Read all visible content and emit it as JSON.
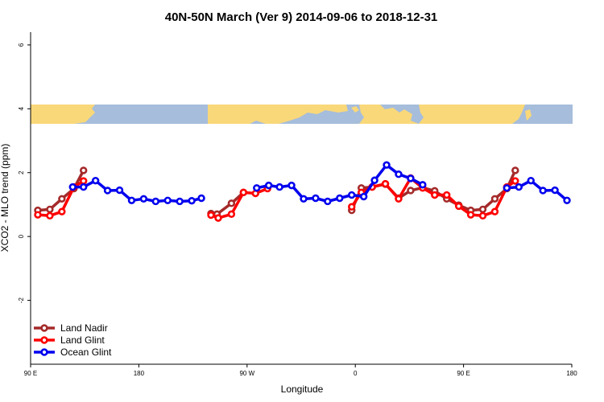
{
  "chart_data": {
    "type": "line",
    "title": "40N-50N March (Ver 9)   2014-09-06 to 2018-12-31",
    "xlabel": "Longitude",
    "ylabel": "XCO2 - MLO trend (ppm)",
    "xlim": [
      -90,
      360
    ],
    "ylim": [
      -4,
      6.4
    ],
    "xticks": [
      {
        "value": -90,
        "label": "90 E"
      },
      {
        "value": 0,
        "label": "180"
      },
      {
        "value": 90,
        "label": "90 W"
      },
      {
        "value": 180,
        "label": "0"
      },
      {
        "value": 270,
        "label": "90 E"
      },
      {
        "value": 360,
        "label": "180"
      }
    ],
    "yticks": [
      {
        "value": -2,
        "label": "-2"
      },
      {
        "value": 0,
        "label": "0"
      },
      {
        "value": 2,
        "label": "2"
      },
      {
        "value": 4,
        "label": "4"
      },
      {
        "value": 6,
        "label": "6"
      }
    ],
    "legend_position": "bottom-left",
    "map_band": {
      "y_range": [
        3.55,
        4.15
      ],
      "ocean_color": "#a6bddb",
      "land_color": "#f9d87a"
    },
    "series": [
      {
        "name": "Land Nadir",
        "color": "#a52a2a",
        "points": [
          {
            "x": -84,
            "y": 0.82
          },
          {
            "x": -74,
            "y": 0.85
          },
          {
            "x": -64,
            "y": 1.18
          },
          {
            "x": -54,
            "y": 1.5
          },
          {
            "x": -46,
            "y": 2.07
          },
          {
            "x": 60,
            "y": 0.72
          },
          {
            "x": 65,
            "y": 0.7
          },
          {
            "x": 77,
            "y": 1.04
          },
          {
            "x": 87,
            "y": 1.38
          },
          {
            "x": 177,
            "y": 0.82
          },
          {
            "x": 185,
            "y": 1.52
          },
          {
            "x": 194,
            "y": 1.55
          },
          {
            "x": 205,
            "y": 1.64
          },
          {
            "x": 216,
            "y": 1.2
          },
          {
            "x": 226,
            "y": 1.44
          },
          {
            "x": 236,
            "y": 1.53
          },
          {
            "x": 246,
            "y": 1.43
          },
          {
            "x": 256,
            "y": 1.18
          },
          {
            "x": 266,
            "y": 0.98
          },
          {
            "x": 276,
            "y": 0.82
          },
          {
            "x": 286,
            "y": 0.85
          },
          {
            "x": 296,
            "y": 1.18
          },
          {
            "x": 306,
            "y": 1.5
          },
          {
            "x": 313,
            "y": 2.07
          }
        ]
      },
      {
        "name": "Land Glint",
        "color": "#ff0000",
        "points": [
          {
            "x": -84,
            "y": 0.68
          },
          {
            "x": -74,
            "y": 0.65
          },
          {
            "x": -64,
            "y": 0.78
          },
          {
            "x": -54,
            "y": 1.55
          },
          {
            "x": -46,
            "y": 1.74
          },
          {
            "x": 60,
            "y": 0.67
          },
          {
            "x": 66,
            "y": 0.58
          },
          {
            "x": 77,
            "y": 0.7
          },
          {
            "x": 87,
            "y": 1.38
          },
          {
            "x": 97,
            "y": 1.35
          },
          {
            "x": 107,
            "y": 1.5
          },
          {
            "x": 177,
            "y": 0.93
          },
          {
            "x": 185,
            "y": 1.38
          },
          {
            "x": 194,
            "y": 1.55
          },
          {
            "x": 205,
            "y": 1.65
          },
          {
            "x": 216,
            "y": 1.18
          },
          {
            "x": 226,
            "y": 1.83
          },
          {
            "x": 236,
            "y": 1.52
          },
          {
            "x": 246,
            "y": 1.3
          },
          {
            "x": 256,
            "y": 1.3
          },
          {
            "x": 266,
            "y": 0.95
          },
          {
            "x": 276,
            "y": 0.68
          },
          {
            "x": 286,
            "y": 0.65
          },
          {
            "x": 296,
            "y": 0.78
          },
          {
            "x": 306,
            "y": 1.55
          },
          {
            "x": 313,
            "y": 1.74
          }
        ]
      },
      {
        "name": "Ocean Glint",
        "color": "#0000ee",
        "points": [
          {
            "x": -55,
            "y": 1.55
          },
          {
            "x": -46,
            "y": 1.55
          },
          {
            "x": -36,
            "y": 1.75
          },
          {
            "x": -26,
            "y": 1.44
          },
          {
            "x": -16,
            "y": 1.45
          },
          {
            "x": -6,
            "y": 1.13
          },
          {
            "x": 4,
            "y": 1.18
          },
          {
            "x": 14,
            "y": 1.1
          },
          {
            "x": 24,
            "y": 1.13
          },
          {
            "x": 34,
            "y": 1.1
          },
          {
            "x": 44,
            "y": 1.12
          },
          {
            "x": 52,
            "y": 1.2
          },
          {
            "x": 98,
            "y": 1.52
          },
          {
            "x": 108,
            "y": 1.6
          },
          {
            "x": 117,
            "y": 1.55
          },
          {
            "x": 127,
            "y": 1.6
          },
          {
            "x": 137,
            "y": 1.18
          },
          {
            "x": 147,
            "y": 1.2
          },
          {
            "x": 157,
            "y": 1.1
          },
          {
            "x": 167,
            "y": 1.2
          },
          {
            "x": 177,
            "y": 1.3
          },
          {
            "x": 187,
            "y": 1.25
          },
          {
            "x": 196,
            "y": 1.76
          },
          {
            "x": 206,
            "y": 2.24
          },
          {
            "x": 216,
            "y": 1.95
          },
          {
            "x": 226,
            "y": 1.82
          },
          {
            "x": 236,
            "y": 1.62
          },
          {
            "x": 306,
            "y": 1.52
          },
          {
            "x": 316,
            "y": 1.55
          },
          {
            "x": 326,
            "y": 1.75
          },
          {
            "x": 336,
            "y": 1.44
          },
          {
            "x": 346,
            "y": 1.45
          },
          {
            "x": 356,
            "y": 1.13
          }
        ]
      }
    ]
  }
}
